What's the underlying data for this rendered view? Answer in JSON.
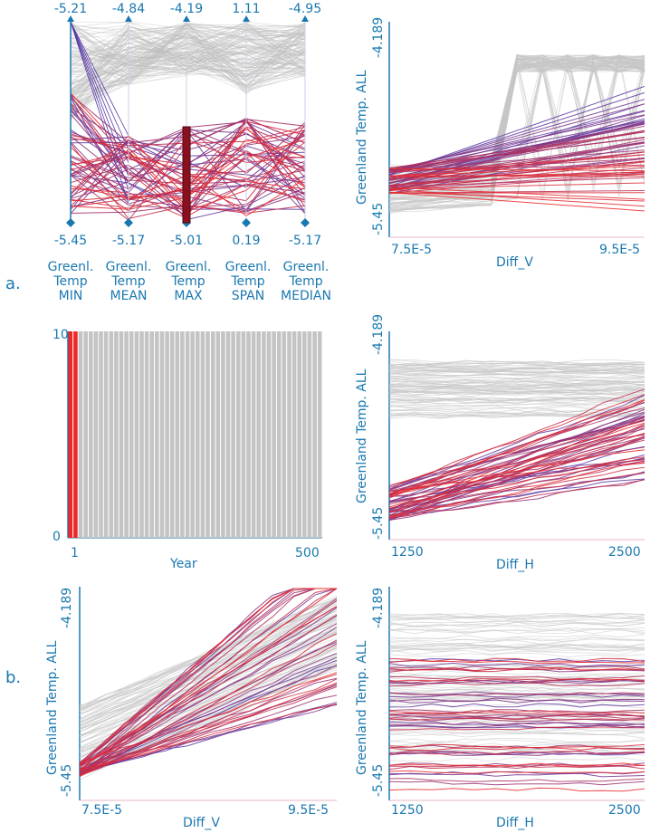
{
  "colors": {
    "axis": "#1a78b0",
    "gray": "#bdbdbd",
    "red": "#ee2828",
    "purple": "#5a3aa8",
    "bar_dark": "#8a1020"
  },
  "panels": {
    "a": "a.",
    "b": "b."
  },
  "chart_data": [
    {
      "id": "parallel-coordinates",
      "type": "line",
      "axes": [
        {
          "name": "Greenl. Temp MIN",
          "name_lines": [
            "Greenl.",
            "Temp",
            "MIN"
          ],
          "top": "-5.21",
          "bottom": "-5.45"
        },
        {
          "name": "Greenl. Temp MEAN",
          "name_lines": [
            "Greenl.",
            "Temp",
            "MEAN"
          ],
          "top": "-4.84",
          "bottom": "-5.17"
        },
        {
          "name": "Greenl. Temp MAX",
          "name_lines": [
            "Greenl.",
            "Temp",
            "MAX"
          ],
          "top": "-4.19",
          "bottom": "-5.01"
        },
        {
          "name": "Greenl. Temp SPAN",
          "name_lines": [
            "Greenl.",
            "Temp",
            "SPAN"
          ],
          "top": "1.11",
          "bottom": "0.19"
        },
        {
          "name": "Greenl. Temp MEDIAN",
          "name_lines": [
            "Greenl.",
            "Temp",
            "MEDIAN"
          ],
          "top": "-4.95",
          "bottom": "-5.17"
        }
      ]
    },
    {
      "id": "histogram-year",
      "type": "bar",
      "xlabel": "Year",
      "xlim": [
        1,
        500
      ],
      "xticks": [
        "1",
        "500"
      ],
      "ylim": [
        0,
        10
      ],
      "yticks": [
        "0",
        "10"
      ],
      "highlight_range": [
        1,
        20
      ]
    },
    {
      "id": "a-top-right",
      "type": "line",
      "xlabel": "Diff_V",
      "ylabel": "Greenland Temp. ALL",
      "xticks": [
        "7.5E-5",
        "9.5E-5"
      ],
      "yticks": [
        "-5.45",
        "-4.189"
      ],
      "xlim": [
        7.5e-05,
        9.5e-05
      ],
      "ylim": [
        -5.45,
        -4.189
      ]
    },
    {
      "id": "a-mid-right",
      "type": "line",
      "xlabel": "Diff_H",
      "ylabel": "Greenland Temp. ALL",
      "xticks": [
        "1250",
        "2500"
      ],
      "yticks": [
        "-5.45",
        "-4.189"
      ],
      "xlim": [
        1250,
        2500
      ],
      "ylim": [
        -5.45,
        -4.189
      ]
    },
    {
      "id": "b-left",
      "type": "line",
      "xlabel": "Diff_V",
      "ylabel": "Greenland Temp. ALL",
      "xticks": [
        "7.5E-5",
        "9.5E-5"
      ],
      "yticks": [
        "-5.45",
        "-4.189"
      ],
      "xlim": [
        7.5e-05,
        9.5e-05
      ],
      "ylim": [
        -5.45,
        -4.189
      ]
    },
    {
      "id": "b-right",
      "type": "line",
      "xlabel": "Diff_H",
      "ylabel": "Greenland Temp. ALL",
      "xticks": [
        "1250",
        "2500"
      ],
      "yticks": [
        "-5.45",
        "-4.189"
      ],
      "xlim": [
        1250,
        2500
      ],
      "ylim": [
        -5.45,
        -4.189
      ]
    }
  ]
}
